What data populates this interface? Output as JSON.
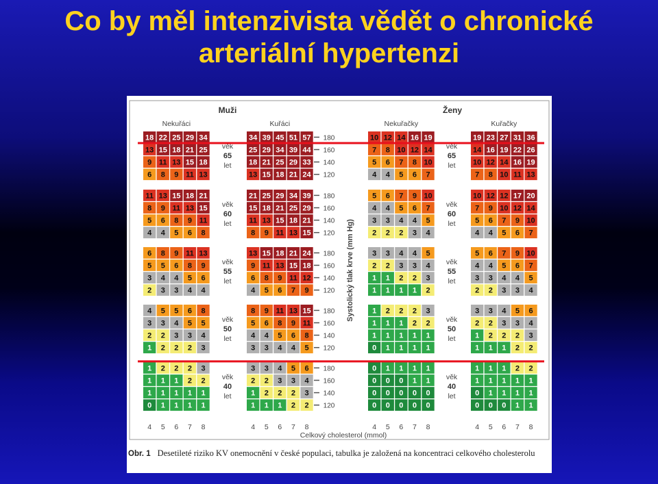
{
  "slide": {
    "title_line1": "Co by měl intenzivista vědět o chronické",
    "title_line2": "arteriální hypertenzi"
  },
  "caption": {
    "label": "Obr. 1",
    "text": "Desetileté riziko KV onemocnění v české populaci, tabulka je založená na koncentraci celkového cholesterolu"
  },
  "chart_data": {
    "type": "heatmap",
    "sex_labels": [
      "Muži",
      "Ženy"
    ],
    "group_labels": [
      "Nekuřáci",
      "Kuřáci",
      "Nekuřačky",
      "Kuřačky"
    ],
    "age_word": "věk",
    "age_unit": "let",
    "ages": [
      "65",
      "60",
      "55",
      "50",
      "40"
    ],
    "y_axis_label": "Systolický tlak krve (mm Hg)",
    "y_ticks": [
      "180",
      "160",
      "140",
      "120"
    ],
    "x_axis_label": "Celkový cholesterol (mmol)",
    "x_ticks": [
      "4",
      "5",
      "6",
      "7",
      "8"
    ],
    "risk_colors": {
      "0": "#1e8a3c",
      "1": "#2ea84a",
      "2": "#f4ec74",
      "3": "#b0b0b0",
      "4": "#b0b0b0",
      "5-6": "#f59a1e",
      "7-9": "#eb6318",
      "10-14": "#db3222",
      "15+": "#9c1d22"
    },
    "tables": [
      {
        "sex": "Muži",
        "group": "Nekuřáci",
        "blocks": [
          [
            [
              18,
              22,
              25,
              29,
              34
            ],
            [
              13,
              15,
              18,
              21,
              25
            ],
            [
              9,
              11,
              13,
              15,
              18
            ],
            [
              6,
              8,
              9,
              11,
              13
            ]
          ],
          [
            [
              11,
              13,
              15,
              18,
              21
            ],
            [
              8,
              9,
              11,
              13,
              15
            ],
            [
              5,
              6,
              8,
              9,
              11
            ],
            [
              4,
              4,
              5,
              6,
              8
            ]
          ],
          [
            [
              6,
              8,
              9,
              11,
              13
            ],
            [
              5,
              5,
              6,
              8,
              9
            ],
            [
              3,
              4,
              4,
              5,
              6
            ],
            [
              2,
              3,
              3,
              4,
              4
            ]
          ],
          [
            [
              4,
              5,
              5,
              6,
              8
            ],
            [
              3,
              3,
              4,
              5,
              5
            ],
            [
              2,
              2,
              3,
              3,
              4
            ],
            [
              1,
              2,
              2,
              2,
              3
            ]
          ],
          [
            [
              1,
              2,
              2,
              2,
              3
            ],
            [
              1,
              1,
              1,
              2,
              2
            ],
            [
              1,
              1,
              1,
              1,
              1
            ],
            [
              0,
              1,
              1,
              1,
              1
            ]
          ]
        ]
      },
      {
        "sex": "Muži",
        "group": "Kuřáci",
        "blocks": [
          [
            [
              34,
              39,
              45,
              51,
              57
            ],
            [
              25,
              29,
              34,
              39,
              44
            ],
            [
              18,
              21,
              25,
              29,
              33
            ],
            [
              13,
              15,
              18,
              21,
              24
            ]
          ],
          [
            [
              21,
              25,
              29,
              34,
              39
            ],
            [
              15,
              18,
              21,
              25,
              29
            ],
            [
              11,
              13,
              15,
              18,
              21
            ],
            [
              8,
              9,
              11,
              13,
              15
            ]
          ],
          [
            [
              13,
              15,
              18,
              21,
              24
            ],
            [
              9,
              11,
              13,
              15,
              18
            ],
            [
              6,
              8,
              9,
              11,
              12
            ],
            [
              4,
              5,
              6,
              7,
              9
            ]
          ],
          [
            [
              8,
              9,
              11,
              13,
              15
            ],
            [
              5,
              6,
              8,
              9,
              11
            ],
            [
              4,
              4,
              5,
              6,
              8
            ],
            [
              3,
              3,
              4,
              4,
              5
            ]
          ],
          [
            [
              3,
              3,
              4,
              5,
              6
            ],
            [
              2,
              2,
              3,
              3,
              4
            ],
            [
              1,
              2,
              2,
              2,
              3
            ],
            [
              1,
              1,
              1,
              2,
              2
            ]
          ]
        ]
      },
      {
        "sex": "Ženy",
        "group": "Nekuřačky",
        "blocks": [
          [
            [
              10,
              12,
              14,
              16,
              19
            ],
            [
              7,
              8,
              10,
              12,
              14
            ],
            [
              5,
              6,
              7,
              8,
              10
            ],
            [
              4,
              4,
              5,
              6,
              7
            ]
          ],
          [
            [
              5,
              6,
              7,
              9,
              10
            ],
            [
              4,
              4,
              5,
              6,
              7
            ],
            [
              3,
              3,
              4,
              4,
              5
            ],
            [
              2,
              2,
              2,
              3,
              4
            ]
          ],
          [
            [
              3,
              3,
              4,
              4,
              5
            ],
            [
              2,
              2,
              3,
              3,
              4
            ],
            [
              1,
              1,
              2,
              2,
              3
            ],
            [
              1,
              1,
              1,
              1,
              2
            ]
          ],
          [
            [
              1,
              2,
              2,
              2,
              3
            ],
            [
              1,
              1,
              1,
              2,
              2
            ],
            [
              1,
              1,
              1,
              1,
              1
            ],
            [
              0,
              1,
              1,
              1,
              1
            ]
          ],
          [
            [
              0,
              1,
              1,
              1,
              1
            ],
            [
              0,
              0,
              0,
              1,
              1
            ],
            [
              0,
              0,
              0,
              0,
              0
            ],
            [
              0,
              0,
              0,
              0,
              0
            ]
          ]
        ]
      },
      {
        "sex": "Ženy",
        "group": "Kuřačky",
        "blocks": [
          [
            [
              19,
              23,
              27,
              31,
              36
            ],
            [
              14,
              16,
              19,
              22,
              26
            ],
            [
              10,
              12,
              14,
              16,
              19
            ],
            [
              7,
              8,
              10,
              11,
              13
            ]
          ],
          [
            [
              10,
              12,
              12,
              17,
              20
            ],
            [
              7,
              9,
              10,
              12,
              14
            ],
            [
              5,
              6,
              7,
              9,
              10
            ],
            [
              4,
              4,
              5,
              6,
              7
            ]
          ],
          [
            [
              5,
              6,
              7,
              9,
              10
            ],
            [
              4,
              4,
              5,
              6,
              7
            ],
            [
              3,
              3,
              4,
              4,
              5
            ],
            [
              2,
              2,
              3,
              3,
              4
            ]
          ],
          [
            [
              3,
              3,
              4,
              5,
              6
            ],
            [
              2,
              2,
              3,
              3,
              4
            ],
            [
              1,
              2,
              2,
              2,
              3
            ],
            [
              1,
              1,
              1,
              2,
              2
            ]
          ],
          [
            [
              1,
              1,
              1,
              2,
              2
            ],
            [
              1,
              1,
              1,
              1,
              1
            ],
            [
              0,
              1,
              1,
              1,
              1
            ],
            [
              0,
              0,
              0,
              1,
              1
            ]
          ]
        ]
      }
    ],
    "highlight_lines": [
      {
        "age": "65",
        "systolic": "160",
        "color": "#e8101c"
      },
      {
        "age": "40",
        "systolic": "180",
        "color": "#e8101c"
      }
    ]
  }
}
